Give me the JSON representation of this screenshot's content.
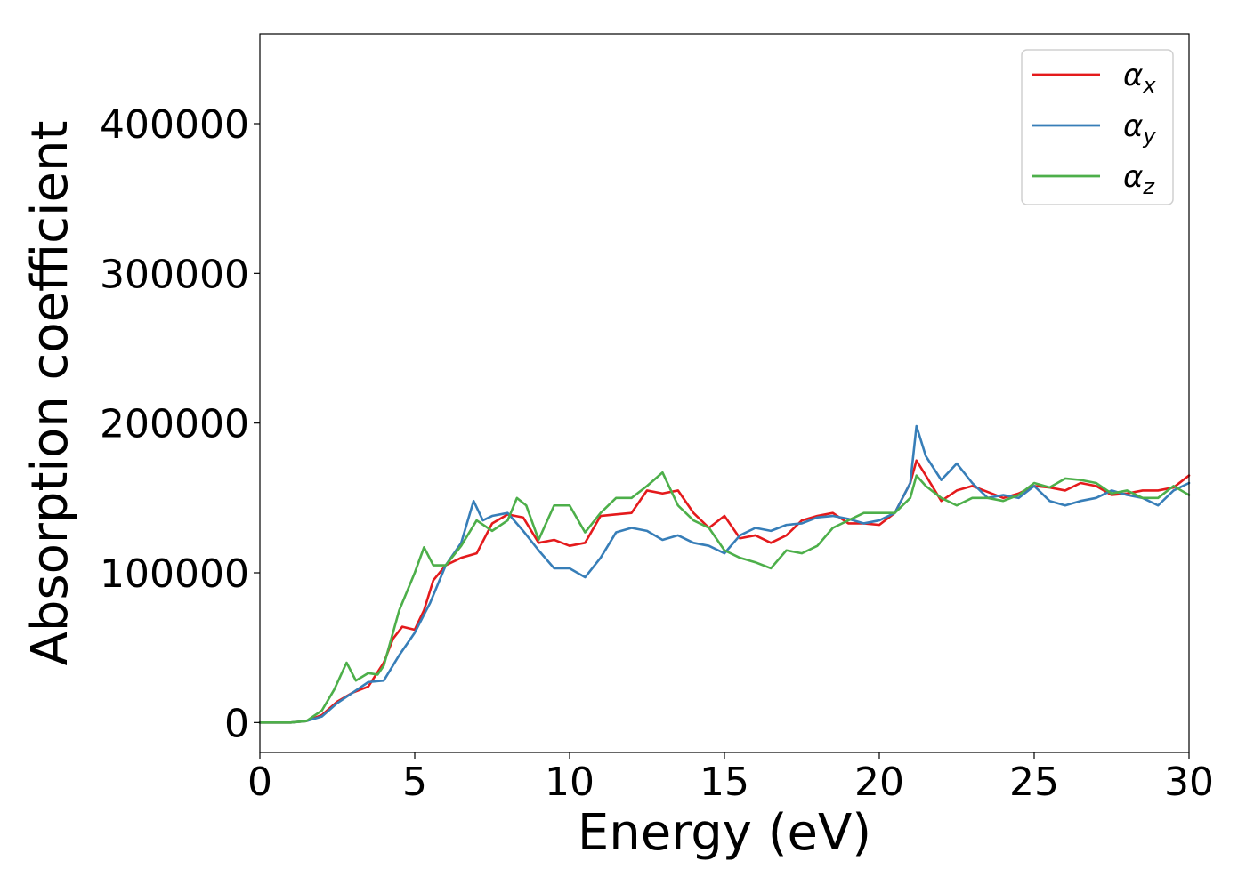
{
  "chart_data": {
    "type": "line",
    "title": "",
    "xlabel": "Energy (eV)",
    "ylabel": "Absorption coefficient",
    "xlim": [
      0,
      30
    ],
    "ylim": [
      -20000,
      460000
    ],
    "xticks": [
      0,
      5,
      10,
      15,
      20,
      25,
      30
    ],
    "yticks": [
      0,
      100000,
      200000,
      300000,
      400000
    ],
    "grid": false,
    "legend_position": "top-right",
    "series": [
      {
        "name": "αx",
        "legend_base": "α",
        "legend_sub": "x",
        "color": "#e41a1c",
        "x": [
          0,
          1.0,
          1.5,
          2.0,
          2.5,
          3.0,
          3.5,
          4.0,
          4.3,
          4.6,
          5.0,
          5.3,
          5.6,
          6.0,
          6.5,
          7.0,
          7.5,
          8.0,
          8.5,
          9.0,
          9.5,
          10.0,
          10.5,
          11.0,
          11.5,
          12.0,
          12.5,
          13.0,
          13.5,
          14.0,
          14.5,
          15.0,
          15.5,
          16.0,
          16.5,
          17.0,
          17.5,
          18.0,
          18.5,
          19.0,
          19.5,
          20.0,
          20.5,
          21.0,
          21.2,
          21.5,
          22.0,
          22.5,
          23.0,
          23.5,
          24.0,
          24.5,
          25.0,
          25.5,
          26.0,
          26.5,
          27.0,
          27.5,
          28.0,
          28.5,
          29.0,
          29.5,
          30.0
        ],
        "y": [
          0,
          0,
          1000,
          5000,
          14000,
          20000,
          24000,
          40000,
          56000,
          64000,
          62000,
          75000,
          95000,
          105000,
          110000,
          113000,
          133000,
          139000,
          137000,
          120000,
          122000,
          118000,
          120000,
          138000,
          139000,
          140000,
          155000,
          153000,
          155000,
          140000,
          130000,
          138000,
          123000,
          125000,
          120000,
          125000,
          135000,
          138000,
          140000,
          133000,
          133000,
          132000,
          140000,
          160000,
          175000,
          165000,
          148000,
          155000,
          158000,
          154000,
          150000,
          153000,
          158000,
          157000,
          155000,
          160000,
          158000,
          152000,
          153000,
          155000,
          155000,
          157000,
          165000
        ]
      },
      {
        "name": "αy",
        "legend_base": "α",
        "legend_sub": "y",
        "color": "#377eb8",
        "x": [
          0,
          1.0,
          1.5,
          2.0,
          2.5,
          3.0,
          3.5,
          4.0,
          4.5,
          5.0,
          5.5,
          6.0,
          6.5,
          6.9,
          7.2,
          7.5,
          8.0,
          8.5,
          9.0,
          9.5,
          10.0,
          10.5,
          11.0,
          11.5,
          12.0,
          12.5,
          13.0,
          13.5,
          14.0,
          14.5,
          15.0,
          15.5,
          16.0,
          16.5,
          17.0,
          17.5,
          18.0,
          18.5,
          19.0,
          19.5,
          20.0,
          20.5,
          21.0,
          21.2,
          21.5,
          22.0,
          22.5,
          23.0,
          23.5,
          24.0,
          24.5,
          25.0,
          25.5,
          26.0,
          26.5,
          27.0,
          27.5,
          28.0,
          28.5,
          29.0,
          29.5,
          30.0
        ],
        "y": [
          0,
          0,
          1000,
          4000,
          13000,
          20000,
          27000,
          28000,
          45000,
          60000,
          80000,
          105000,
          120000,
          148000,
          135000,
          138000,
          140000,
          128000,
          115000,
          103000,
          103000,
          97000,
          110000,
          127000,
          130000,
          128000,
          122000,
          125000,
          120000,
          118000,
          113000,
          125000,
          130000,
          128000,
          132000,
          133000,
          137000,
          138000,
          136000,
          133000,
          135000,
          140000,
          160000,
          198000,
          178000,
          162000,
          173000,
          160000,
          150000,
          152000,
          150000,
          158000,
          148000,
          145000,
          148000,
          150000,
          155000,
          152000,
          150000,
          145000,
          155000,
          160000
        ]
      },
      {
        "name": "αz",
        "legend_base": "α",
        "legend_sub": "z",
        "color": "#4daf4a",
        "x": [
          0,
          1.0,
          1.5,
          2.0,
          2.4,
          2.8,
          3.1,
          3.5,
          3.8,
          4.0,
          4.5,
          5.0,
          5.3,
          5.6,
          6.0,
          6.5,
          7.0,
          7.5,
          8.0,
          8.3,
          8.6,
          9.0,
          9.5,
          10.0,
          10.5,
          11.0,
          11.5,
          12.0,
          12.5,
          13.0,
          13.5,
          14.0,
          14.5,
          15.0,
          15.5,
          16.0,
          16.5,
          17.0,
          17.5,
          18.0,
          18.5,
          19.0,
          19.5,
          20.0,
          20.5,
          21.0,
          21.2,
          21.5,
          22.0,
          22.5,
          23.0,
          23.5,
          24.0,
          24.5,
          25.0,
          25.5,
          26.0,
          26.5,
          27.0,
          27.5,
          28.0,
          28.5,
          29.0,
          29.5,
          30.0
        ],
        "y": [
          0,
          0,
          1000,
          8000,
          22000,
          40000,
          28000,
          33000,
          32000,
          38000,
          75000,
          100000,
          117000,
          105000,
          105000,
          118000,
          135000,
          128000,
          135000,
          150000,
          145000,
          122000,
          145000,
          145000,
          127000,
          140000,
          150000,
          150000,
          158000,
          167000,
          145000,
          135000,
          130000,
          115000,
          110000,
          107000,
          103000,
          115000,
          113000,
          118000,
          130000,
          135000,
          140000,
          140000,
          140000,
          150000,
          165000,
          158000,
          150000,
          145000,
          150000,
          150000,
          148000,
          152000,
          160000,
          157000,
          163000,
          162000,
          160000,
          153000,
          155000,
          150000,
          150000,
          158000,
          152000
        ]
      }
    ]
  }
}
